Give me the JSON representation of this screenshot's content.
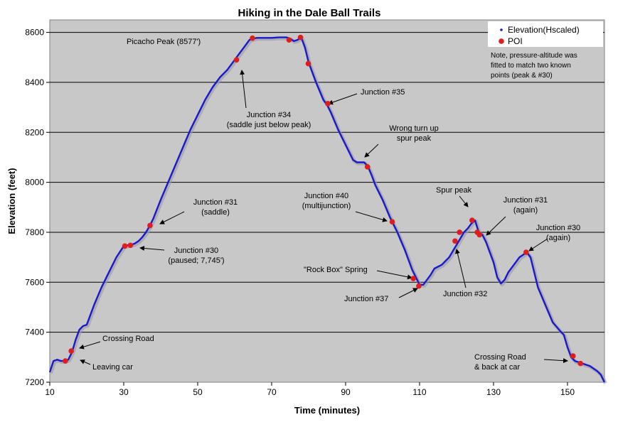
{
  "chart_data": {
    "type": "line",
    "title": "Hiking in the Dale Ball Trails",
    "xlabel": "Time (minutes)",
    "ylabel": "Elevation (feet)",
    "xlim": [
      10,
      160
    ],
    "ylim": [
      7200,
      8650
    ],
    "x_ticks": [
      10,
      30,
      50,
      70,
      90,
      110,
      130,
      150
    ],
    "y_ticks": [
      7200,
      7400,
      7600,
      7800,
      8000,
      8200,
      8400,
      8600
    ],
    "grid": "horizontal",
    "legend_position": "top-right",
    "series": [
      {
        "name": "Elevation(Hscaled)",
        "color": "#1a1acc",
        "x": [
          10,
          11,
          12,
          13,
          14,
          15,
          16,
          17,
          18,
          19,
          20,
          22,
          24,
          26,
          28,
          30,
          31,
          32,
          33,
          34,
          35,
          36,
          37,
          38,
          40,
          42,
          44,
          46,
          48,
          50,
          52,
          54,
          56,
          58,
          60,
          61,
          62,
          63,
          64,
          65,
          66,
          68,
          70,
          72,
          74,
          75,
          76,
          77,
          78,
          79,
          80,
          82,
          84,
          85,
          86,
          88,
          90,
          92,
          93,
          94,
          95,
          96,
          97,
          98,
          100,
          102,
          104,
          106,
          108,
          109,
          110,
          111,
          112,
          113,
          114,
          116,
          118,
          120,
          121,
          122,
          123,
          124,
          125,
          126,
          127,
          128,
          129,
          130,
          131,
          132,
          133,
          134,
          135,
          136,
          137,
          138,
          139,
          140,
          141,
          142,
          144,
          146,
          148,
          149,
          150,
          151,
          152,
          153,
          154,
          155,
          156,
          157,
          158,
          159,
          160
        ],
        "y": [
          7240,
          7285,
          7290,
          7285,
          7285,
          7290,
          7320,
          7370,
          7410,
          7425,
          7430,
          7510,
          7580,
          7640,
          7700,
          7745,
          7748,
          7750,
          7755,
          7765,
          7780,
          7800,
          7825,
          7855,
          7930,
          8000,
          8070,
          8140,
          8210,
          8270,
          8330,
          8380,
          8420,
          8450,
          8490,
          8510,
          8530,
          8550,
          8570,
          8575,
          8578,
          8578,
          8578,
          8580,
          8580,
          8575,
          8565,
          8570,
          8580,
          8540,
          8480,
          8400,
          8330,
          8310,
          8280,
          8210,
          8150,
          8090,
          8080,
          8080,
          8080,
          8065,
          8030,
          7990,
          7930,
          7860,
          7800,
          7730,
          7650,
          7620,
          7590,
          7590,
          7610,
          7630,
          7655,
          7670,
          7700,
          7750,
          7775,
          7800,
          7815,
          7835,
          7848,
          7800,
          7790,
          7760,
          7720,
          7680,
          7620,
          7595,
          7610,
          7640,
          7660,
          7680,
          7700,
          7710,
          7720,
          7700,
          7640,
          7580,
          7510,
          7440,
          7405,
          7390,
          7340,
          7300,
          7285,
          7280,
          7275,
          7270,
          7265,
          7255,
          7245,
          7230,
          7200
        ]
      },
      {
        "name": "POI",
        "color": "#e01c1c",
        "x": [
          14.2,
          15.8,
          30.3,
          31.8,
          37.1,
          60.5,
          64.8,
          74.7,
          77.8,
          79.9,
          85.2,
          95.9,
          102.6,
          108.3,
          109.8,
          119.6,
          120.8,
          124.2,
          125.6,
          126.2,
          138.8,
          151.5,
          153.5
        ],
        "y": [
          7285,
          7325,
          7745,
          7748,
          7827,
          8490,
          8577,
          8570,
          8580,
          8475,
          8315,
          8062,
          7842,
          7615,
          7585,
          7765,
          7800,
          7848,
          7800,
          7790,
          7720,
          7305,
          7275
        ]
      }
    ],
    "annotations": [
      {
        "text": [
          "Leaving car"
        ]
      },
      {
        "text": [
          "Crossing Road"
        ]
      },
      {
        "text": [
          "Junction #30",
          "(paused; 7,745')"
        ]
      },
      {
        "text": [
          "Junction #31",
          "(saddle)"
        ]
      },
      {
        "text": [
          "Junction #34",
          "(saddle just below peak)"
        ]
      },
      {
        "text": [
          "Picacho Peak (8577')"
        ]
      },
      {
        "text": [
          "Junction #35"
        ]
      },
      {
        "text": [
          "Wrong turn up",
          "spur peak"
        ]
      },
      {
        "text": [
          "Junction #40",
          "(multijunction)"
        ]
      },
      {
        "text": [
          "\"Rock Box\" Spring"
        ]
      },
      {
        "text": [
          "Junction #37"
        ]
      },
      {
        "text": [
          "Spur peak"
        ]
      },
      {
        "text": [
          "Junction #32"
        ]
      },
      {
        "text": [
          "Junction #31",
          "(again)"
        ]
      },
      {
        "text": [
          "Junction #30",
          "(again)"
        ]
      },
      {
        "text": [
          "Crossing Road",
          "& back at car"
        ]
      }
    ],
    "note": [
      "Note, pressure-altitude was",
      "fitted to match two known",
      "points (peak & #30)"
    ]
  }
}
